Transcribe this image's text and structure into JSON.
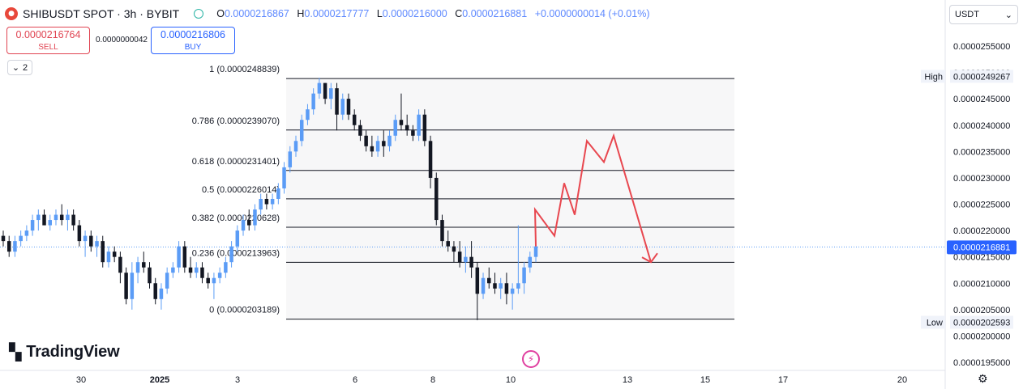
{
  "header": {
    "symbol": "SHIBUSDT SPOT · 3h · BYBIT",
    "o_label": "O",
    "o_value": "0.0000216867",
    "h_label": "H",
    "h_value": "0.0000217777",
    "l_label": "L",
    "l_value": "0.0000216000",
    "c_label": "C",
    "c_value": "0.0000216881",
    "change": "+0.0000000014 (+0.01%)"
  },
  "trade": {
    "sell_price": "0.0000216764",
    "sell_label": "SELL",
    "spread": "0.0000000042",
    "buy_price": "0.0000216806",
    "buy_label": "BUY"
  },
  "indicators_toggle": {
    "count": "2"
  },
  "currency": {
    "selected": "USDT"
  },
  "branding": {
    "logo_text": "TradingView",
    "logo_icon": "tradingview-logo-icon"
  },
  "colors": {
    "up": "#5b9cf6",
    "down": "#131722",
    "projection": "#e8474f",
    "price_tag": "#2962ff"
  },
  "chart_data": {
    "type": "candlestick",
    "symbol": "SHIBUSDT",
    "interval": "3h",
    "exchange": "BYBIT",
    "ylim": [
      1.93e-05,
      2.59e-05
    ],
    "y_ticks": [
      "0.0000255000",
      "0.0000250000",
      "0.0000245000",
      "0.0000240000",
      "0.0000235000",
      "0.0000230000",
      "0.0000225000",
      "0.0000220000",
      "0.0000215000",
      "0.0000210000",
      "0.0000205000",
      "0.0000200000",
      "0.0000195000"
    ],
    "x_ticks": [
      "30",
      "2025",
      "3",
      "6",
      "8",
      "10",
      "13",
      "15",
      "17",
      "20"
    ],
    "fib_levels": [
      {
        "ratio": "1",
        "price": 2.48839e-05,
        "text": "1 (0.0000248839)"
      },
      {
        "ratio": "0.786",
        "price": 2.3907e-05,
        "text": "0.786 (0.0000239070)"
      },
      {
        "ratio": "0.618",
        "price": 2.31401e-05,
        "text": "0.618 (0.0000231401)"
      },
      {
        "ratio": "0.5",
        "price": 2.26014e-05,
        "text": "0.5 (0.0000226014)"
      },
      {
        "ratio": "0.382",
        "price": 2.20628e-05,
        "text": "0.382 (0.0000220628)"
      },
      {
        "ratio": "0.236",
        "price": 2.13963e-05,
        "text": "0.236 (0.0000213963)"
      },
      {
        "ratio": "0",
        "price": 2.03189e-05,
        "text": "0 (0.0000203189)"
      }
    ],
    "high": {
      "label": "High",
      "value": "0.0000249267"
    },
    "low": {
      "label": "Low",
      "value": "0.0000202593"
    },
    "last_price": {
      "value": "0.0000216881",
      "num": 2.16881e-05
    },
    "candles": [
      [
        2.19e-05,
        2.2e-05,
        2.17e-05,
        2.18e-05
      ],
      [
        2.18e-05,
        2.19e-05,
        2.15e-05,
        2.16e-05
      ],
      [
        2.16e-05,
        2.19e-05,
        2.15e-05,
        2.18e-05
      ],
      [
        2.18e-05,
        2.2e-05,
        2.17e-05,
        2.19e-05
      ],
      [
        2.19e-05,
        2.21e-05,
        2.18e-05,
        2.2e-05
      ],
      [
        2.2e-05,
        2.23e-05,
        2.19e-05,
        2.22e-05
      ],
      [
        2.22e-05,
        2.24e-05,
        2.2e-05,
        2.23e-05
      ],
      [
        2.23e-05,
        2.24e-05,
        2.21e-05,
        2.21e-05
      ],
      [
        2.21e-05,
        2.23e-05,
        2.2e-05,
        2.22e-05
      ],
      [
        2.22e-05,
        2.24e-05,
        2.21e-05,
        2.23e-05
      ],
      [
        2.23e-05,
        2.25e-05,
        2.21e-05,
        2.22e-05
      ],
      [
        2.22e-05,
        2.24e-05,
        2.2e-05,
        2.23e-05
      ],
      [
        2.23e-05,
        2.24e-05,
        2.2e-05,
        2.21e-05
      ],
      [
        2.21e-05,
        2.22e-05,
        2.17e-05,
        2.18e-05
      ],
      [
        2.18e-05,
        2.2e-05,
        2.15e-05,
        2.19e-05
      ],
      [
        2.19e-05,
        2.2e-05,
        2.16e-05,
        2.17e-05
      ],
      [
        2.17e-05,
        2.19e-05,
        2.15e-05,
        2.18e-05
      ],
      [
        2.18e-05,
        2.19e-05,
        2.13e-05,
        2.14e-05
      ],
      [
        2.14e-05,
        2.17e-05,
        2.13e-05,
        2.16e-05
      ],
      [
        2.16e-05,
        2.17e-05,
        2.14e-05,
        2.15e-05
      ],
      [
        2.15e-05,
        2.16e-05,
        2.1e-05,
        2.12e-05
      ],
      [
        2.12e-05,
        2.13e-05,
        2.06e-05,
        2.07e-05
      ],
      [
        2.07e-05,
        2.14e-05,
        2.05e-05,
        2.12e-05
      ],
      [
        2.12e-05,
        2.15e-05,
        2.1e-05,
        2.14e-05
      ],
      [
        2.14e-05,
        2.16e-05,
        2.12e-05,
        2.13e-05
      ],
      [
        2.13e-05,
        2.14e-05,
        2.09e-05,
        2.1e-05
      ],
      [
        2.1e-05,
        2.11e-05,
        2.06e-05,
        2.07e-05
      ],
      [
        2.07e-05,
        2.1e-05,
        2.05e-05,
        2.09e-05
      ],
      [
        2.09e-05,
        2.13e-05,
        2.08e-05,
        2.12e-05
      ],
      [
        2.12e-05,
        2.14e-05,
        2.11e-05,
        2.13e-05
      ],
      [
        2.13e-05,
        2.18e-05,
        2.12e-05,
        2.17e-05
      ],
      [
        2.17e-05,
        2.18e-05,
        2.12e-05,
        2.13e-05
      ],
      [
        2.13e-05,
        2.15e-05,
        2.11e-05,
        2.12e-05
      ],
      [
        2.12e-05,
        2.14e-05,
        2.11e-05,
        2.13e-05
      ],
      [
        2.13e-05,
        2.14e-05,
        2.1e-05,
        2.11e-05
      ],
      [
        2.11e-05,
        2.12e-05,
        2.09e-05,
        2.1e-05
      ],
      [
        2.1e-05,
        2.12e-05,
        2.07e-05,
        2.11e-05
      ],
      [
        2.11e-05,
        2.13e-05,
        2.1e-05,
        2.12e-05
      ],
      [
        2.12e-05,
        2.15e-05,
        2.11e-05,
        2.14e-05
      ],
      [
        2.14e-05,
        2.18e-05,
        2.13e-05,
        2.17e-05
      ],
      [
        2.17e-05,
        2.21e-05,
        2.16e-05,
        2.2e-05
      ],
      [
        2.2e-05,
        2.23e-05,
        2.19e-05,
        2.22e-05
      ],
      [
        2.22e-05,
        2.24e-05,
        2.2e-05,
        2.21e-05
      ],
      [
        2.21e-05,
        2.25e-05,
        2.2e-05,
        2.24e-05
      ],
      [
        2.24e-05,
        2.27e-05,
        2.23e-05,
        2.26e-05
      ],
      [
        2.26e-05,
        2.27e-05,
        2.24e-05,
        2.25e-05
      ],
      [
        2.25e-05,
        2.27e-05,
        2.24e-05,
        2.26e-05
      ],
      [
        2.26e-05,
        2.29e-05,
        2.25e-05,
        2.28e-05
      ],
      [
        2.28e-05,
        2.33e-05,
        2.27e-05,
        2.32e-05
      ],
      [
        2.32e-05,
        2.36e-05,
        2.31e-05,
        2.35e-05
      ],
      [
        2.35e-05,
        2.38e-05,
        2.34e-05,
        2.37e-05
      ],
      [
        2.37e-05,
        2.42e-05,
        2.36e-05,
        2.41e-05
      ],
      [
        2.41e-05,
        2.44e-05,
        2.4e-05,
        2.43e-05
      ],
      [
        2.43e-05,
        2.47e-05,
        2.42e-05,
        2.46e-05
      ],
      [
        2.46e-05,
        2.49e-05,
        2.45e-05,
        2.48e-05
      ],
      [
        2.48e-05,
        2.48e-05,
        2.44e-05,
        2.45e-05
      ],
      [
        2.45e-05,
        2.48e-05,
        2.43e-05,
        2.47e-05
      ],
      [
        2.47e-05,
        2.48e-05,
        2.39e-05,
        2.42e-05
      ],
      [
        2.42e-05,
        2.46e-05,
        2.41e-05,
        2.45e-05
      ],
      [
        2.45e-05,
        2.46e-05,
        2.41e-05,
        2.42e-05
      ],
      [
        2.42e-05,
        2.43e-05,
        2.39e-05,
        2.4e-05
      ],
      [
        2.4e-05,
        2.41e-05,
        2.37e-05,
        2.38e-05
      ],
      [
        2.38e-05,
        2.39e-05,
        2.35e-05,
        2.36e-05
      ],
      [
        2.36e-05,
        2.38e-05,
        2.34e-05,
        2.35e-05
      ],
      [
        2.35e-05,
        2.38e-05,
        2.34e-05,
        2.37e-05
      ],
      [
        2.37e-05,
        2.39e-05,
        2.34e-05,
        2.36e-05
      ],
      [
        2.36e-05,
        2.39e-05,
        2.35e-05,
        2.38e-05
      ],
      [
        2.38e-05,
        2.42e-05,
        2.37e-05,
        2.41e-05
      ],
      [
        2.41e-05,
        2.46e-05,
        2.39e-05,
        2.4e-05
      ],
      [
        2.4e-05,
        2.42e-05,
        2.38e-05,
        2.39e-05
      ],
      [
        2.39e-05,
        2.4e-05,
        2.37e-05,
        2.38e-05
      ],
      [
        2.38e-05,
        2.43e-05,
        2.37e-05,
        2.42e-05
      ],
      [
        2.42e-05,
        2.43e-05,
        2.36e-05,
        2.37e-05
      ],
      [
        2.37e-05,
        2.38e-05,
        2.28e-05,
        2.3e-05
      ],
      [
        2.3e-05,
        2.31e-05,
        2.21e-05,
        2.22e-05
      ],
      [
        2.22e-05,
        2.23e-05,
        2.17e-05,
        2.18e-05
      ],
      [
        2.18e-05,
        2.2e-05,
        2.16e-05,
        2.17e-05
      ],
      [
        2.17e-05,
        2.18e-05,
        2.14e-05,
        2.16e-05
      ],
      [
        2.16e-05,
        2.18e-05,
        2.13e-05,
        2.14e-05
      ],
      [
        2.14e-05,
        2.17e-05,
        2.12e-05,
        2.15e-05
      ],
      [
        2.15e-05,
        2.18e-05,
        2.11e-05,
        2.13e-05
      ],
      [
        2.13e-05,
        2.14e-05,
        2.03e-05,
        2.08e-05
      ],
      [
        2.08e-05,
        2.12e-05,
        2.07e-05,
        2.11e-05
      ],
      [
        2.11e-05,
        2.13e-05,
        2.09e-05,
        2.1e-05
      ],
      [
        2.1e-05,
        2.12e-05,
        2.08e-05,
        2.09e-05
      ],
      [
        2.09e-05,
        2.11e-05,
        2.07e-05,
        2.1e-05
      ],
      [
        2.1e-05,
        2.12e-05,
        2.06e-05,
        2.08e-05
      ],
      [
        2.08e-05,
        2.1e-05,
        2.05e-05,
        2.09e-05
      ],
      [
        2.09e-05,
        2.21e-05,
        2.08e-05,
        2.1e-05
      ],
      [
        2.1e-05,
        2.14e-05,
        2.08e-05,
        2.13e-05
      ],
      [
        2.13e-05,
        2.16e-05,
        2.12e-05,
        2.15e-05
      ],
      [
        2.15e-05,
        2.18e-05,
        2.14e-05,
        2.17e-05
      ]
    ],
    "projection_path": [
      [
        2.17e-05,
        2.17e-05
      ],
      [
        2.24e-05,
        2.24e-05
      ],
      [
        2.19e-05,
        2.19e-05
      ],
      [
        2.29e-05,
        2.29e-05
      ],
      [
        2.23e-05,
        2.23e-05
      ],
      [
        2.37e-05,
        2.37e-05
      ],
      [
        2.33e-05,
        2.33e-05
      ],
      [
        2.38e-05,
        2.38e-05
      ],
      [
        2.14e-05,
        2.14e-05
      ]
    ]
  }
}
